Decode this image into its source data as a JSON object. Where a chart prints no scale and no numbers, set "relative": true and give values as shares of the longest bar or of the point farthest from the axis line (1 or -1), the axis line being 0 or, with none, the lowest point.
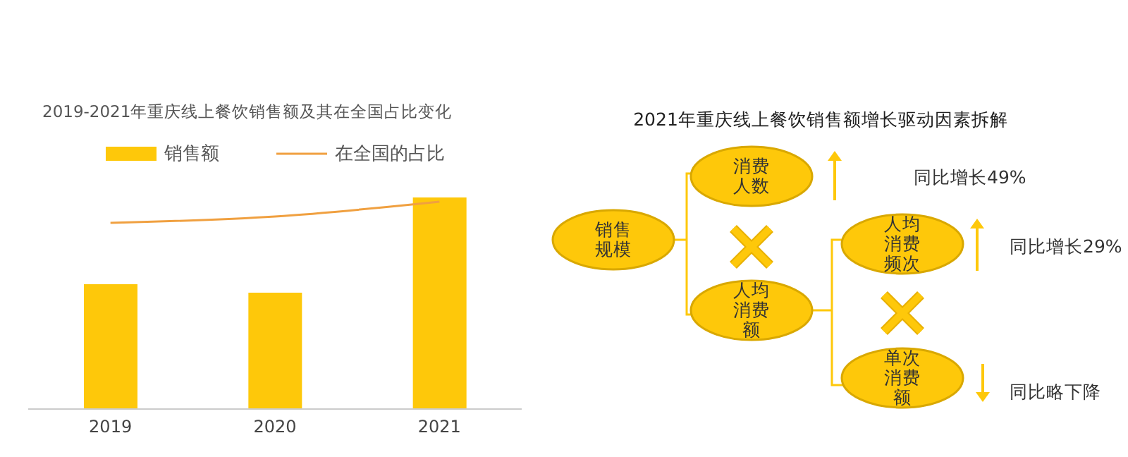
{
  "chart_data": [
    {
      "type": "bar",
      "title": "2019-2021年重庆线上餐饮销售额及其在全国占比变化",
      "categories": [
        "2019",
        "2020",
        "2021"
      ],
      "relative": true,
      "legend": "top",
      "series": [
        {
          "name": "销售额",
          "type": "bar",
          "color": "#fec80a",
          "values": [
            0.59,
            0.55,
            1
          ]
        },
        {
          "name": "在全国的占比",
          "type": "line",
          "color": "#f0a040",
          "values": [
            0.88,
            0.91,
            0.98
          ]
        }
      ]
    },
    {
      "type": "other",
      "title": "2021年重庆线上餐饮销售额增长驱动因素拆解",
      "annotations": [
        "销售规模",
        "消费人数",
        "人均消费额",
        "人均消费频次",
        "单次消费额",
        "同比增长49%",
        "同比增长29%",
        "同比略下降"
      ]
    }
  ]
}
